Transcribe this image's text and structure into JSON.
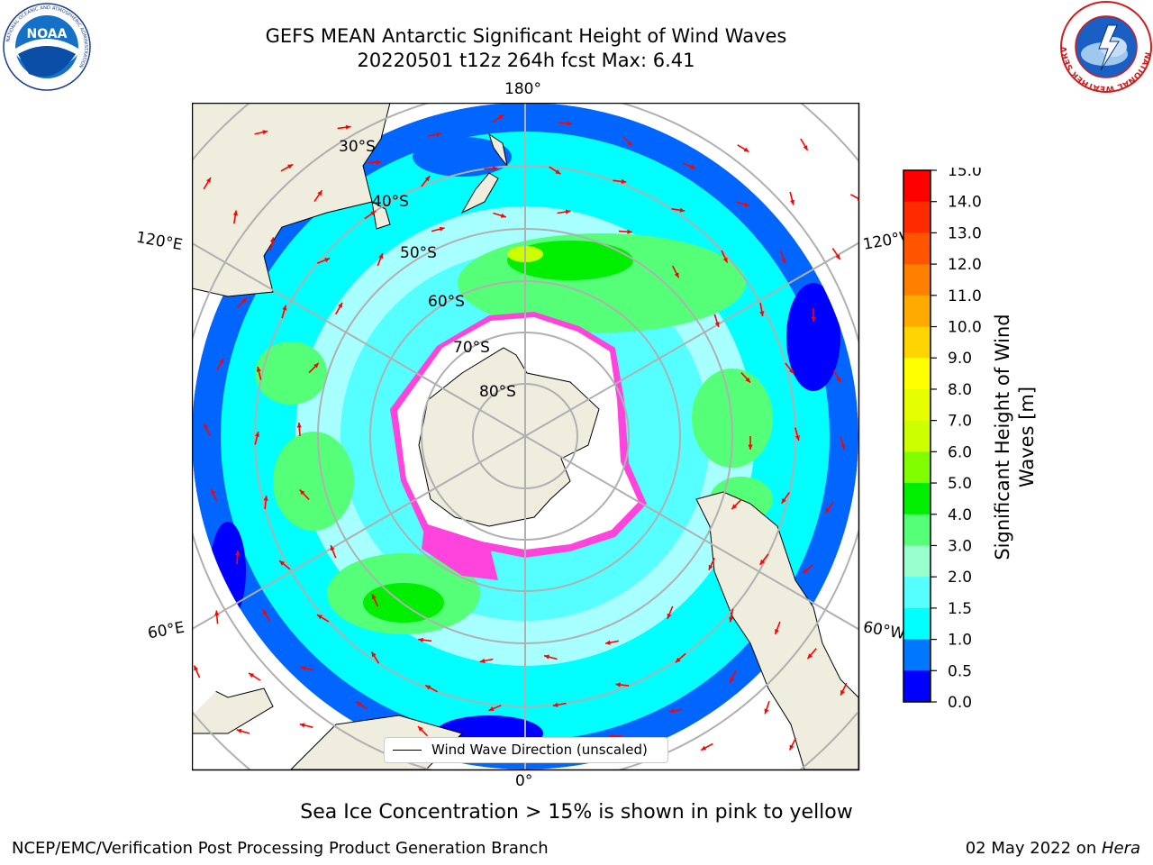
{
  "header": {
    "title_line1": "GEFS MEAN Antarctic Significant Height of Wind Waves",
    "title_line2": "20220501 t12z 264h fcst   Max: 6.41"
  },
  "logos": {
    "left": {
      "text": "NOAA",
      "ring_text": "NATIONAL OCEANIC AND ATMOSPHERIC ADMINISTRATION",
      "bottom_text": "U.S. DEPARTMENT OF COMMERCE"
    },
    "right": {
      "ring_text": "NATIONAL WEATHER SERVICE"
    }
  },
  "map": {
    "longitude_labels": {
      "top": "180°",
      "bottom": "0°",
      "upper_left": "120°E",
      "upper_right": "120°W",
      "lower_left": "60°E",
      "lower_right": "60°W"
    },
    "latitude_labels": [
      "30°S",
      "40°S",
      "50°S",
      "60°S",
      "70°S",
      "80°S"
    ],
    "legend_label": "Wind Wave Direction (unscaled)",
    "colors": {
      "land": "#efedde",
      "grid": "#b0b0b0",
      "arrows": "#ff0000"
    }
  },
  "colorbar": {
    "label_line1": "Significant Height of Wind",
    "label_line2": "Waves [m]",
    "ticks": [
      "15.0",
      "14.0",
      "13.0",
      "12.0",
      "11.0",
      "10.0",
      "9.0",
      "8.0",
      "7.0",
      "6.0",
      "5.0",
      "4.0",
      "3.0",
      "2.0",
      "1.5",
      "1.0",
      "0.5",
      "0.0"
    ],
    "colors_top_to_bottom": [
      "#ff0000",
      "#ff2a00",
      "#ff5500",
      "#ff8000",
      "#ffaa00",
      "#ffd400",
      "#ffff00",
      "#e6ff00",
      "#ccff00",
      "#80ff00",
      "#00ee00",
      "#55ff77",
      "#99ffcc",
      "#55ffff",
      "#00ffff",
      "#0077ff",
      "#0000ff"
    ]
  },
  "caption": "Sea Ice Concentration > 15% is shown in pink to yellow",
  "footer": {
    "left": "NCEP/EMC/Verification Post Processing Product Generation Branch",
    "right_prefix": "02 May 2022 on ",
    "right_italic": "Hera"
  }
}
